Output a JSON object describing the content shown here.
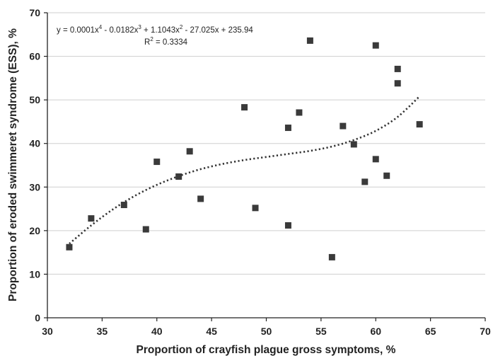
{
  "chart_data": {
    "type": "scatter",
    "xlabel": "Proportion of crayfish plague gross symptoms, %",
    "ylabel": "Proportion of eroded swimmeret syndrome (ESS), %",
    "xlim": [
      30,
      70
    ],
    "ylim": [
      0,
      70
    ],
    "xticks": [
      "30",
      "35",
      "40",
      "45",
      "50",
      "55",
      "60",
      "65",
      "70"
    ],
    "yticks": [
      "0",
      "10",
      "20",
      "30",
      "40",
      "50",
      "60",
      "70"
    ],
    "grid": "horizontal",
    "marker": "square",
    "marker_color": "#3a3a3a",
    "trend_color": "#333333",
    "points": [
      {
        "x": 32,
        "y": 16.2
      },
      {
        "x": 34,
        "y": 22.8
      },
      {
        "x": 37,
        "y": 25.9
      },
      {
        "x": 39,
        "y": 20.3
      },
      {
        "x": 40,
        "y": 35.8
      },
      {
        "x": 42,
        "y": 32.4
      },
      {
        "x": 43,
        "y": 38.2
      },
      {
        "x": 44,
        "y": 27.3
      },
      {
        "x": 48,
        "y": 48.3
      },
      {
        "x": 49,
        "y": 25.2
      },
      {
        "x": 52,
        "y": 43.6
      },
      {
        "x": 52,
        "y": 21.2
      },
      {
        "x": 53,
        "y": 47.1
      },
      {
        "x": 54,
        "y": 63.6
      },
      {
        "x": 56,
        "y": 13.9
      },
      {
        "x": 57,
        "y": 44.0
      },
      {
        "x": 58,
        "y": 39.8
      },
      {
        "x": 59,
        "y": 31.2
      },
      {
        "x": 60,
        "y": 62.5
      },
      {
        "x": 60,
        "y": 36.4
      },
      {
        "x": 61,
        "y": 32.6
      },
      {
        "x": 62,
        "y": 57.1
      },
      {
        "x": 62,
        "y": 53.8
      },
      {
        "x": 64,
        "y": 44.4
      }
    ],
    "trendline": {
      "type": "polynomial",
      "order": 4,
      "x_range": [
        32,
        64
      ],
      "curve": [
        {
          "x": 32,
          "y": 17.0
        },
        {
          "x": 34,
          "y": 21.2
        },
        {
          "x": 36,
          "y": 24.9
        },
        {
          "x": 38,
          "y": 28.0
        },
        {
          "x": 40,
          "y": 30.5
        },
        {
          "x": 42,
          "y": 32.5
        },
        {
          "x": 44,
          "y": 34.1
        },
        {
          "x": 46,
          "y": 35.3
        },
        {
          "x": 48,
          "y": 36.2
        },
        {
          "x": 50,
          "y": 36.9
        },
        {
          "x": 52,
          "y": 37.6
        },
        {
          "x": 54,
          "y": 38.3
        },
        {
          "x": 56,
          "y": 39.3
        },
        {
          "x": 58,
          "y": 40.8
        },
        {
          "x": 60,
          "y": 42.9
        },
        {
          "x": 62,
          "y": 46.1
        },
        {
          "x": 64,
          "y": 50.8
        }
      ],
      "equation": {
        "prefix": "y = 0.0001x",
        "exp1": "4",
        "mid1": " - 0.0182x",
        "exp2": "3",
        "mid2": " + 1.1043x",
        "exp3": "2",
        "suffix": " - 27.025x + 235.94"
      },
      "r2": {
        "label": "R",
        "sup": "2",
        "value": " = 0.3334"
      }
    }
  }
}
